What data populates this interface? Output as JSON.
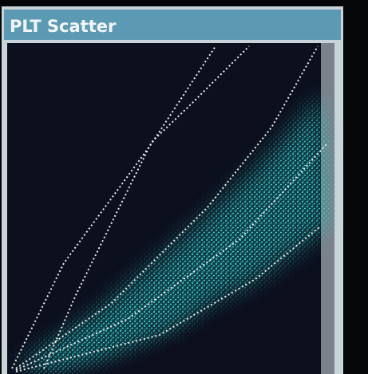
{
  "panel": {
    "title": "PLT Scatter"
  }
}
